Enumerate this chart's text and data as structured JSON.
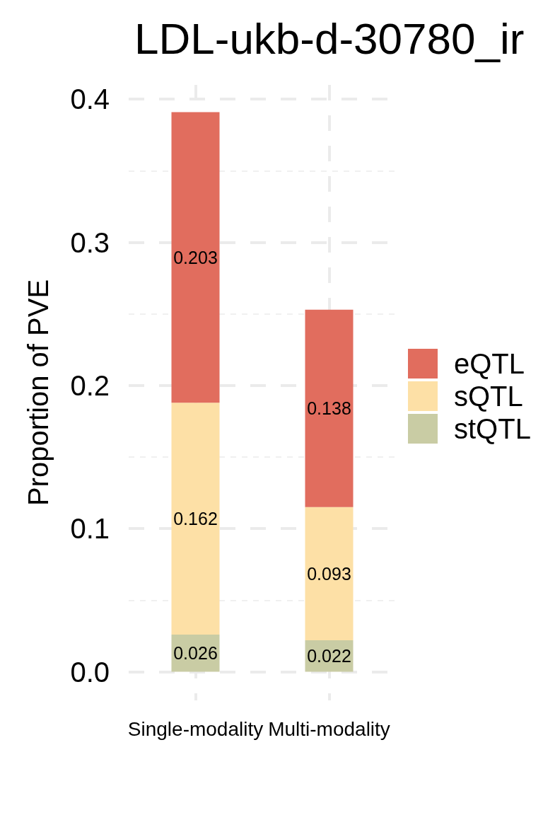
{
  "chart_data": {
    "type": "bar",
    "title": "LDL-ukb-d-30780_ir",
    "ylabel": "Proportion of PVE",
    "categories": [
      "Single-modality",
      "Multi-modality"
    ],
    "series": [
      {
        "name": "stQTL",
        "color": "#c9cca4",
        "values": [
          0.026,
          0.022
        ]
      },
      {
        "name": "sQTL",
        "color": "#fde0a6",
        "values": [
          0.162,
          0.093
        ]
      },
      {
        "name": "eQTL",
        "color": "#e16d5e",
        "values": [
          0.203,
          0.138
        ]
      }
    ],
    "stacked": true,
    "ylim": [
      -0.02,
      0.41
    ],
    "yticks": [
      {
        "value": 0,
        "label": "0.0"
      },
      {
        "value": 0.05,
        "label": null
      },
      0.1,
      {
        "value": 0.15,
        "label": null
      },
      0.2,
      {
        "value": 0.25,
        "label": null
      },
      0.3,
      {
        "value": 0.35,
        "label": null
      },
      0.4
    ],
    "grid": true,
    "legend": "right",
    "data_labels": true
  }
}
